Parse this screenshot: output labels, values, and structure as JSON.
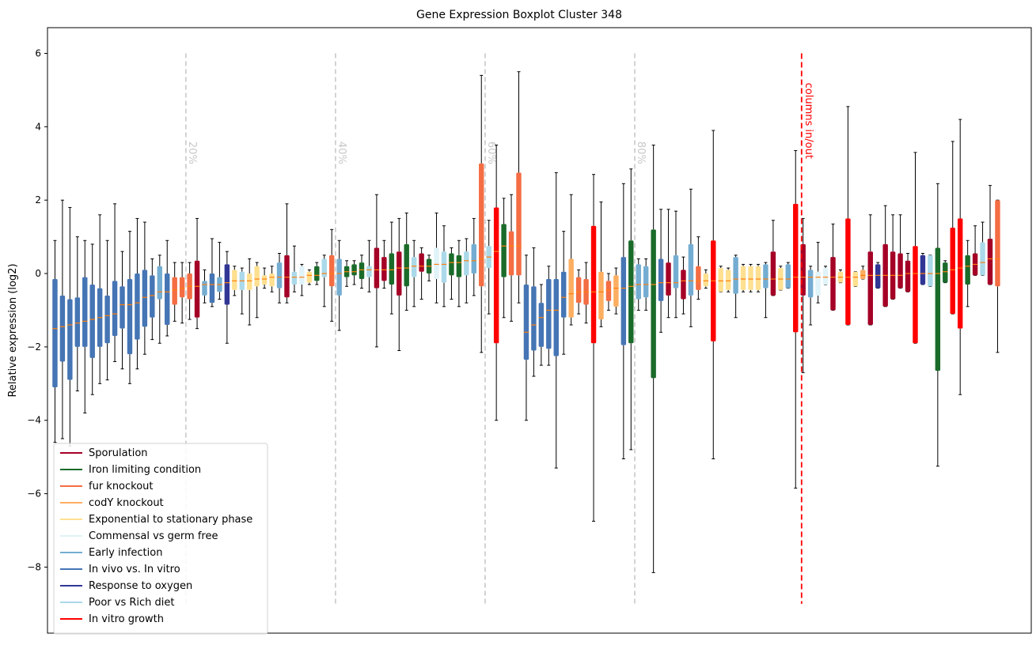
{
  "chart_data": {
    "type": "boxplot",
    "title": "Gene Expression Boxplot Cluster 348",
    "xlabel": "",
    "ylabel": "Relative expression (log2)",
    "ylim": [
      -9.8,
      6.7
    ],
    "yticks": [
      6,
      4,
      2,
      0,
      -2,
      -4,
      -6,
      -8
    ],
    "ytick_labels": [
      "6",
      "4",
      "2",
      "0",
      "−2",
      "−4",
      "−6",
      "−8"
    ],
    "grid": false,
    "legend_position": "lower-left",
    "n_boxes": 131,
    "median_color": "#ff7f0e",
    "legend": [
      {
        "label": "Sporulation",
        "color": "#a50026"
      },
      {
        "label": "Iron limiting condition",
        "color": "#1a6b2a"
      },
      {
        "label": "fur knockout",
        "color": "#f46d43"
      },
      {
        "label": "codY knockout",
        "color": "#fdae61"
      },
      {
        "label": "Exponential to stationary phase",
        "color": "#fee090"
      },
      {
        "label": "Commensal vs germ free",
        "color": "#e0f3f8"
      },
      {
        "label": "Early infection",
        "color": "#74add1"
      },
      {
        "label": "In vivo vs. In vitro",
        "color": "#4575b4"
      },
      {
        "label": "Response to oxygen",
        "color": "#313695"
      },
      {
        "label": "Poor vs Rich diet",
        "color": "#abd9e9"
      },
      {
        "label": "In vitro growth",
        "color": "#ff0000"
      }
    ],
    "percentile_lines": [
      {
        "index": 18,
        "label": "20%"
      },
      {
        "index": 38,
        "label": "40%"
      },
      {
        "index": 58,
        "label": "60%"
      },
      {
        "index": 78,
        "label": "80%"
      }
    ],
    "columns_in_out": {
      "index": 99.8,
      "label": "columns in/out"
    },
    "boxes": [
      {
        "group": 7,
        "wlo": -4.6,
        "q1": -3.1,
        "med": -1.5,
        "q3": -0.15,
        "whi": 0.9
      },
      {
        "group": 7,
        "wlo": -4.5,
        "q1": -2.4,
        "med": -1.45,
        "q3": -0.6,
        "whi": 2.0
      },
      {
        "group": 7,
        "wlo": -4.7,
        "q1": -2.9,
        "med": -1.4,
        "q3": -0.7,
        "whi": 1.8
      },
      {
        "group": 7,
        "wlo": -3.2,
        "q1": -2.0,
        "med": -1.35,
        "q3": -0.65,
        "whi": 1.0
      },
      {
        "group": 7,
        "wlo": -3.8,
        "q1": -2.0,
        "med": -1.3,
        "q3": -0.1,
        "whi": 0.9
      },
      {
        "group": 7,
        "wlo": -3.3,
        "q1": -2.3,
        "med": -1.25,
        "q3": -0.3,
        "whi": 0.8
      },
      {
        "group": 7,
        "wlo": -3.0,
        "q1": -2.0,
        "med": -1.2,
        "q3": -0.4,
        "whi": 1.6
      },
      {
        "group": 7,
        "wlo": -2.9,
        "q1": -1.9,
        "med": -1.15,
        "q3": -0.6,
        "whi": 0.9
      },
      {
        "group": 7,
        "wlo": -2.4,
        "q1": -1.7,
        "med": -1.1,
        "q3": -0.2,
        "whi": 1.9
      },
      {
        "group": 7,
        "wlo": -2.6,
        "q1": -1.5,
        "med": -0.85,
        "q3": -0.35,
        "whi": 0.6
      },
      {
        "group": 7,
        "wlo": -3.0,
        "q1": -2.2,
        "med": -0.85,
        "q3": -0.15,
        "whi": 1.15
      },
      {
        "group": 7,
        "wlo": -2.6,
        "q1": -1.8,
        "med": -0.8,
        "q3": 0.0,
        "whi": 1.5
      },
      {
        "group": 7,
        "wlo": -2.2,
        "q1": -1.45,
        "med": -0.65,
        "q3": 0.1,
        "whi": 1.4
      },
      {
        "group": 7,
        "wlo": -1.8,
        "q1": -1.2,
        "med": -0.6,
        "q3": -0.05,
        "whi": 0.4
      },
      {
        "group": 6,
        "wlo": -1.9,
        "q1": -0.7,
        "med": -0.5,
        "q3": 0.2,
        "whi": 0.5
      },
      {
        "group": 7,
        "wlo": -1.7,
        "q1": -1.4,
        "med": -0.5,
        "q3": 0.0,
        "whi": 0.9
      },
      {
        "group": 2,
        "wlo": -1.3,
        "q1": -0.85,
        "med": -0.45,
        "q3": -0.1,
        "whi": 0.3
      },
      {
        "group": 2,
        "wlo": -1.35,
        "q1": -0.65,
        "med": -0.4,
        "q3": -0.1,
        "whi": 0.3
      },
      {
        "group": 2,
        "wlo": -1.25,
        "q1": -0.7,
        "med": -0.35,
        "q3": 0.0,
        "whi": 0.3
      },
      {
        "group": 0,
        "wlo": -1.5,
        "q1": -1.2,
        "med": -0.35,
        "q3": 0.35,
        "whi": 1.5
      },
      {
        "group": 6,
        "wlo": -0.8,
        "q1": -0.6,
        "med": -0.3,
        "q3": -0.2,
        "whi": 0.1
      },
      {
        "group": 7,
        "wlo": -0.9,
        "q1": -0.8,
        "med": -0.3,
        "q3": 0.0,
        "whi": 0.95
      },
      {
        "group": 6,
        "wlo": -0.7,
        "q1": -0.5,
        "med": -0.3,
        "q3": -0.1,
        "whi": 0.85
      },
      {
        "group": 8,
        "wlo": -1.9,
        "q1": -0.85,
        "med": -0.25,
        "q3": 0.25,
        "whi": 0.6
      },
      {
        "group": 4,
        "wlo": -0.6,
        "q1": -0.45,
        "med": -0.2,
        "q3": 0.1,
        "whi": 0.2
      },
      {
        "group": 9,
        "wlo": -1.1,
        "q1": -0.45,
        "med": -0.2,
        "q3": 0.05,
        "whi": 0.15
      },
      {
        "group": 4,
        "wlo": -1.4,
        "q1": -0.45,
        "med": -0.2,
        "q3": 0.0,
        "whi": 0.4
      },
      {
        "group": 4,
        "wlo": -1.2,
        "q1": -0.35,
        "med": -0.15,
        "q3": 0.2,
        "whi": 0.3
      },
      {
        "group": 4,
        "wlo": -0.4,
        "q1": -0.3,
        "med": -0.15,
        "q3": -0.05,
        "whi": 0.15
      },
      {
        "group": 4,
        "wlo": -0.5,
        "q1": -0.35,
        "med": -0.1,
        "q3": 0.0,
        "whi": 0.2
      },
      {
        "group": 6,
        "wlo": -0.8,
        "q1": -0.4,
        "med": -0.1,
        "q3": 0.3,
        "whi": 0.55
      },
      {
        "group": 0,
        "wlo": -0.8,
        "q1": -0.65,
        "med": -0.1,
        "q3": 0.5,
        "whi": 1.9
      },
      {
        "group": 9,
        "wlo": -0.5,
        "q1": -0.3,
        "med": -0.1,
        "q3": 0.05,
        "whi": 0.75
      },
      {
        "group": 5,
        "wlo": -0.6,
        "q1": -0.3,
        "med": -0.1,
        "q3": 0.2,
        "whi": 0.25
      },
      {
        "group": 4,
        "wlo": -0.3,
        "q1": -0.25,
        "med": -0.05,
        "q3": 0.05,
        "whi": 0.1
      },
      {
        "group": 1,
        "wlo": -0.3,
        "q1": -0.2,
        "med": -0.05,
        "q3": 0.2,
        "whi": 0.3
      },
      {
        "group": 9,
        "wlo": -0.9,
        "q1": -0.1,
        "med": 0.0,
        "q3": 0.4,
        "whi": 0.5
      },
      {
        "group": 2,
        "wlo": -1.3,
        "q1": -0.35,
        "med": 0.0,
        "q3": 0.5,
        "whi": 1.2
      },
      {
        "group": 6,
        "wlo": -1.55,
        "q1": -0.6,
        "med": 0.0,
        "q3": 0.4,
        "whi": 0.9
      },
      {
        "group": 1,
        "wlo": -0.35,
        "q1": -0.1,
        "med": 0.05,
        "q3": 0.2,
        "whi": 0.35
      },
      {
        "group": 1,
        "wlo": -0.3,
        "q1": -0.05,
        "med": 0.05,
        "q3": 0.25,
        "whi": 0.35
      },
      {
        "group": 1,
        "wlo": -0.4,
        "q1": -0.15,
        "med": 0.1,
        "q3": 0.3,
        "whi": 0.5
      },
      {
        "group": 9,
        "wlo": -0.5,
        "q1": -0.1,
        "med": 0.1,
        "q3": 0.2,
        "whi": 0.9
      },
      {
        "group": 0,
        "wlo": -2.0,
        "q1": -0.4,
        "med": 0.1,
        "q3": 0.7,
        "whi": 2.15
      },
      {
        "group": 0,
        "wlo": -0.4,
        "q1": -0.2,
        "med": 0.1,
        "q3": 0.45,
        "whi": 0.9
      },
      {
        "group": 1,
        "wlo": -1.1,
        "q1": -0.3,
        "med": 0.1,
        "q3": 0.55,
        "whi": 1.4
      },
      {
        "group": 0,
        "wlo": -2.1,
        "q1": -0.6,
        "med": 0.15,
        "q3": 0.6,
        "whi": 1.5
      },
      {
        "group": 1,
        "wlo": -1.0,
        "q1": -0.35,
        "med": 0.15,
        "q3": 0.8,
        "whi": 1.65
      },
      {
        "group": 9,
        "wlo": -0.9,
        "q1": -0.1,
        "med": 0.2,
        "q3": 0.45,
        "whi": 0.9
      },
      {
        "group": 0,
        "wlo": -0.7,
        "q1": 0.05,
        "med": 0.2,
        "q3": 0.55,
        "whi": 0.7
      },
      {
        "group": 1,
        "wlo": -0.2,
        "q1": 0.0,
        "med": 0.2,
        "q3": 0.4,
        "whi": 0.5
      },
      {
        "group": 5,
        "wlo": -0.8,
        "q1": -0.15,
        "med": 0.25,
        "q3": 0.7,
        "whi": 1.65
      },
      {
        "group": 9,
        "wlo": -0.9,
        "q1": -0.25,
        "med": 0.25,
        "q3": 0.6,
        "whi": 1.3
      },
      {
        "group": 1,
        "wlo": -0.7,
        "q1": -0.05,
        "med": 0.3,
        "q3": 0.55,
        "whi": 0.7
      },
      {
        "group": 1,
        "wlo": -0.9,
        "q1": -0.1,
        "med": 0.3,
        "q3": 0.5,
        "whi": 0.9
      },
      {
        "group": 9,
        "wlo": -0.8,
        "q1": -0.05,
        "med": 0.35,
        "q3": 0.6,
        "whi": 0.95
      },
      {
        "group": 6,
        "wlo": -0.6,
        "q1": 0.0,
        "med": 0.35,
        "q3": 0.8,
        "whi": 1.5
      },
      {
        "group": 2,
        "wlo": -2.15,
        "q1": -0.35,
        "med": 0.4,
        "q3": 3.0,
        "whi": 5.4
      },
      {
        "group": 9,
        "wlo": -1.1,
        "q1": 0.15,
        "med": 0.45,
        "q3": 0.75,
        "whi": 1.45
      },
      {
        "group": 10,
        "wlo": -4.0,
        "q1": -1.9,
        "med": 0.6,
        "q3": 1.8,
        "whi": 3.5
      },
      {
        "group": 1,
        "wlo": -1.2,
        "q1": -0.1,
        "med": 0.75,
        "q3": 1.35,
        "whi": 2.05
      },
      {
        "group": 2,
        "wlo": -1.3,
        "q1": -0.05,
        "med": 0.75,
        "q3": 1.15,
        "whi": 2.15
      },
      {
        "group": 2,
        "wlo": -0.8,
        "q1": -0.05,
        "med": 0.75,
        "q3": 2.75,
        "whi": 5.5
      },
      {
        "group": 7,
        "wlo": -4.0,
        "q1": -2.35,
        "med": -1.6,
        "q3": -0.3,
        "whi": 0.5
      },
      {
        "group": 7,
        "wlo": -2.8,
        "q1": -2.1,
        "med": -1.4,
        "q3": -0.35,
        "whi": 0.7
      },
      {
        "group": 7,
        "wlo": -2.5,
        "q1": -2.0,
        "med": -1.2,
        "q3": -0.8,
        "whi": -0.3
      },
      {
        "group": 7,
        "wlo": -2.5,
        "q1": -2.05,
        "med": -1.0,
        "q3": -0.15,
        "whi": 0.2
      },
      {
        "group": 7,
        "wlo": -5.3,
        "q1": -2.25,
        "med": -1.0,
        "q3": -0.15,
        "whi": 2.75
      },
      {
        "group": 7,
        "wlo": -2.2,
        "q1": -1.2,
        "med": -0.65,
        "q3": 0.05,
        "whi": 1.15
      },
      {
        "group": 3,
        "wlo": -1.4,
        "q1": -1.2,
        "med": -0.55,
        "q3": 0.4,
        "whi": 2.15
      },
      {
        "group": 2,
        "wlo": -1.1,
        "q1": -0.8,
        "med": -0.5,
        "q3": -0.1,
        "whi": 0.1
      },
      {
        "group": 2,
        "wlo": -1.35,
        "q1": -0.85,
        "med": -0.5,
        "q3": -0.15,
        "whi": 0.3
      },
      {
        "group": 10,
        "wlo": -6.75,
        "q1": -1.9,
        "med": -0.5,
        "q3": 1.3,
        "whi": 2.7
      },
      {
        "group": 3,
        "wlo": -1.45,
        "q1": -1.25,
        "med": -0.5,
        "q3": 0.05,
        "whi": 1.95
      },
      {
        "group": 2,
        "wlo": -1.0,
        "q1": -0.75,
        "med": -0.45,
        "q3": -0.2,
        "whi": 0.0
      },
      {
        "group": 3,
        "wlo": -1.1,
        "q1": -0.9,
        "med": -0.4,
        "q3": -0.05,
        "whi": 0.15
      },
      {
        "group": 7,
        "wlo": -5.05,
        "q1": -1.95,
        "med": -0.4,
        "q3": 0.45,
        "whi": 2.45
      },
      {
        "group": 1,
        "wlo": -4.8,
        "q1": -1.9,
        "med": -0.35,
        "q3": 0.9,
        "whi": 2.85
      },
      {
        "group": 6,
        "wlo": -1.0,
        "q1": -0.7,
        "med": -0.3,
        "q3": 0.25,
        "whi": 0.4
      },
      {
        "group": 6,
        "wlo": -1.0,
        "q1": -0.65,
        "med": -0.3,
        "q3": 0.2,
        "whi": 0.4
      },
      {
        "group": 1,
        "wlo": -8.15,
        "q1": -2.85,
        "med": -0.3,
        "q3": 1.2,
        "whi": 3.5
      },
      {
        "group": 7,
        "wlo": -1.6,
        "q1": -0.75,
        "med": -0.25,
        "q3": 0.4,
        "whi": 1.75
      },
      {
        "group": 0,
        "wlo": -1.2,
        "q1": -0.6,
        "med": -0.25,
        "q3": 0.3,
        "whi": 1.75
      },
      {
        "group": 6,
        "wlo": -1.2,
        "q1": -0.4,
        "med": -0.25,
        "q3": 0.5,
        "whi": 1.7
      },
      {
        "group": 0,
        "wlo": -1.1,
        "q1": -0.7,
        "med": -0.2,
        "q3": 0.1,
        "whi": 0.45
      },
      {
        "group": 6,
        "wlo": -1.45,
        "q1": -0.6,
        "med": -0.2,
        "q3": 0.8,
        "whi": 2.3
      },
      {
        "group": 2,
        "wlo": -0.7,
        "q1": -0.45,
        "med": -0.2,
        "q3": 0.2,
        "whi": 1.0
      },
      {
        "group": 4,
        "wlo": -0.4,
        "q1": -0.35,
        "med": -0.2,
        "q3": 0.0,
        "whi": 0.1
      },
      {
        "group": 10,
        "wlo": -5.05,
        "q1": -1.85,
        "med": -0.2,
        "q3": 0.9,
        "whi": 3.9
      },
      {
        "group": 4,
        "wlo": -0.5,
        "q1": -0.5,
        "med": -0.2,
        "q3": 0.15,
        "whi": 0.2
      },
      {
        "group": 4,
        "wlo": -0.5,
        "q1": -0.45,
        "med": -0.2,
        "q3": 0.1,
        "whi": 0.15
      },
      {
        "group": 6,
        "wlo": -1.2,
        "q1": -0.55,
        "med": -0.15,
        "q3": 0.45,
        "whi": 0.5
      },
      {
        "group": 4,
        "wlo": -0.5,
        "q1": -0.45,
        "med": -0.15,
        "q3": 0.2,
        "whi": 0.25
      },
      {
        "group": 4,
        "wlo": -0.5,
        "q1": -0.45,
        "med": -0.15,
        "q3": 0.2,
        "whi": 0.25
      },
      {
        "group": 4,
        "wlo": -0.5,
        "q1": -0.45,
        "med": -0.15,
        "q3": 0.2,
        "whi": 0.25
      },
      {
        "group": 6,
        "wlo": -1.2,
        "q1": -0.4,
        "med": -0.15,
        "q3": 0.25,
        "whi": 0.3
      },
      {
        "group": 0,
        "wlo": -0.6,
        "q1": -0.6,
        "med": -0.15,
        "q3": 0.6,
        "whi": 1.45
      },
      {
        "group": 4,
        "wlo": -0.45,
        "q1": -0.45,
        "med": -0.15,
        "q3": 0.15,
        "whi": 0.2
      },
      {
        "group": 6,
        "wlo": -0.4,
        "q1": -0.4,
        "med": -0.15,
        "q3": 0.25,
        "whi": 0.3
      },
      {
        "group": 10,
        "wlo": -5.85,
        "q1": -1.6,
        "med": -0.1,
        "q3": 1.9,
        "whi": 3.35
      },
      {
        "group": 0,
        "wlo": -2.7,
        "q1": -0.6,
        "med": -0.1,
        "q3": 0.8,
        "whi": 1.5
      },
      {
        "group": 6,
        "wlo": -1.4,
        "q1": -0.65,
        "med": -0.1,
        "q3": 0.1,
        "whi": 0.2
      },
      {
        "group": 5,
        "wlo": -0.8,
        "q1": -0.6,
        "med": -0.1,
        "q3": 0.05,
        "whi": 0.85
      },
      {
        "group": 5,
        "wlo": -0.3,
        "q1": -0.3,
        "med": -0.1,
        "q3": 0.15,
        "whi": 0.2
      },
      {
        "group": 0,
        "wlo": -1.0,
        "q1": -1.0,
        "med": -0.1,
        "q3": 0.45,
        "whi": 1.35
      },
      {
        "group": 4,
        "wlo": -0.25,
        "q1": -0.25,
        "med": -0.1,
        "q3": 0.05,
        "whi": 0.1
      },
      {
        "group": 10,
        "wlo": -1.4,
        "q1": -1.4,
        "med": -0.1,
        "q3": 1.5,
        "whi": 4.55
      },
      {
        "group": 4,
        "wlo": -0.35,
        "q1": -0.35,
        "med": -0.1,
        "q3": 0.05,
        "whi": 0.05
      },
      {
        "group": 3,
        "wlo": -0.15,
        "q1": -0.15,
        "med": -0.05,
        "q3": 0.1,
        "whi": 0.2
      },
      {
        "group": 0,
        "wlo": -1.4,
        "q1": -1.4,
        "med": -0.05,
        "q3": 0.6,
        "whi": 1.6
      },
      {
        "group": 8,
        "wlo": -0.4,
        "q1": -0.4,
        "med": -0.05,
        "q3": 0.25,
        "whi": 0.3
      },
      {
        "group": 0,
        "wlo": -0.9,
        "q1": -0.9,
        "med": -0.05,
        "q3": 0.8,
        "whi": 1.85
      },
      {
        "group": 0,
        "wlo": -0.7,
        "q1": -0.7,
        "med": -0.05,
        "q3": 0.6,
        "whi": 1.6
      },
      {
        "group": 0,
        "wlo": -0.4,
        "q1": -0.4,
        "med": -0.05,
        "q3": 0.55,
        "whi": 1.6
      },
      {
        "group": 0,
        "wlo": -0.5,
        "q1": -0.5,
        "med": 0.0,
        "q3": 0.35,
        "whi": 0.55
      },
      {
        "group": 10,
        "wlo": -1.9,
        "q1": -1.9,
        "med": 0.0,
        "q3": 0.75,
        "whi": 3.3
      },
      {
        "group": 8,
        "wlo": -0.3,
        "q1": -0.3,
        "med": 0.0,
        "q3": 0.5,
        "whi": 0.55
      },
      {
        "group": 9,
        "wlo": -0.35,
        "q1": -0.35,
        "med": 0.0,
        "q3": 0.5,
        "whi": 0.5
      },
      {
        "group": 1,
        "wlo": -5.25,
        "q1": -2.65,
        "med": 0.0,
        "q3": 0.7,
        "whi": 2.45
      },
      {
        "group": 1,
        "wlo": -0.25,
        "q1": -0.25,
        "med": 0.05,
        "q3": 0.3,
        "whi": 0.35
      },
      {
        "group": 10,
        "wlo": -1.1,
        "q1": -1.1,
        "med": 0.1,
        "q3": 1.25,
        "whi": 3.6
      },
      {
        "group": 10,
        "wlo": -3.3,
        "q1": -1.5,
        "med": 0.15,
        "q3": 1.5,
        "whi": 4.2
      },
      {
        "group": 1,
        "wlo": -0.9,
        "q1": -0.3,
        "med": 0.2,
        "q3": 0.5,
        "whi": 0.9
      },
      {
        "group": 0,
        "wlo": -0.05,
        "q1": -0.05,
        "med": 0.25,
        "q3": 0.55,
        "whi": 1.3
      },
      {
        "group": 9,
        "wlo": -0.05,
        "q1": -0.05,
        "med": 0.3,
        "q3": 0.85,
        "whi": 1.4
      },
      {
        "group": 0,
        "wlo": -0.3,
        "q1": -0.3,
        "med": 0.4,
        "q3": 0.95,
        "whi": 2.4
      },
      {
        "group": 2,
        "wlo": -2.15,
        "q1": -0.35,
        "med": 0.4,
        "q3": 2.0,
        "whi": 2.0
      }
    ]
  }
}
